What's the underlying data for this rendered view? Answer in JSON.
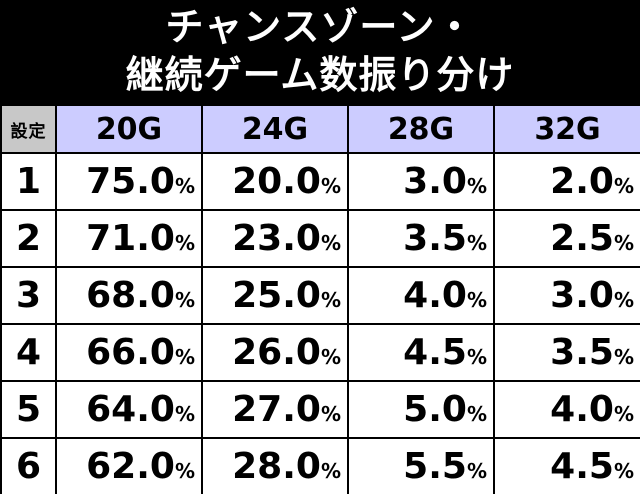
{
  "title": {
    "line1": "チャンスゾーン・",
    "line2": "継続ゲーム数振り分け"
  },
  "table": {
    "corner_label": "設定",
    "columns": [
      "20G",
      "24G",
      "28G",
      "32G"
    ],
    "percent_sign": "%",
    "rows": [
      {
        "setting": "1",
        "values": [
          "75.0",
          "20.0",
          "3.0",
          "2.0"
        ]
      },
      {
        "setting": "2",
        "values": [
          "71.0",
          "23.0",
          "3.5",
          "2.5"
        ]
      },
      {
        "setting": "3",
        "values": [
          "68.0",
          "25.0",
          "4.0",
          "3.0"
        ]
      },
      {
        "setting": "4",
        "values": [
          "66.0",
          "26.0",
          "4.5",
          "3.5"
        ]
      },
      {
        "setting": "5",
        "values": [
          "64.0",
          "27.0",
          "5.0",
          "4.0"
        ]
      },
      {
        "setting": "6",
        "values": [
          "62.0",
          "28.0",
          "5.5",
          "4.5"
        ]
      }
    ]
  }
}
